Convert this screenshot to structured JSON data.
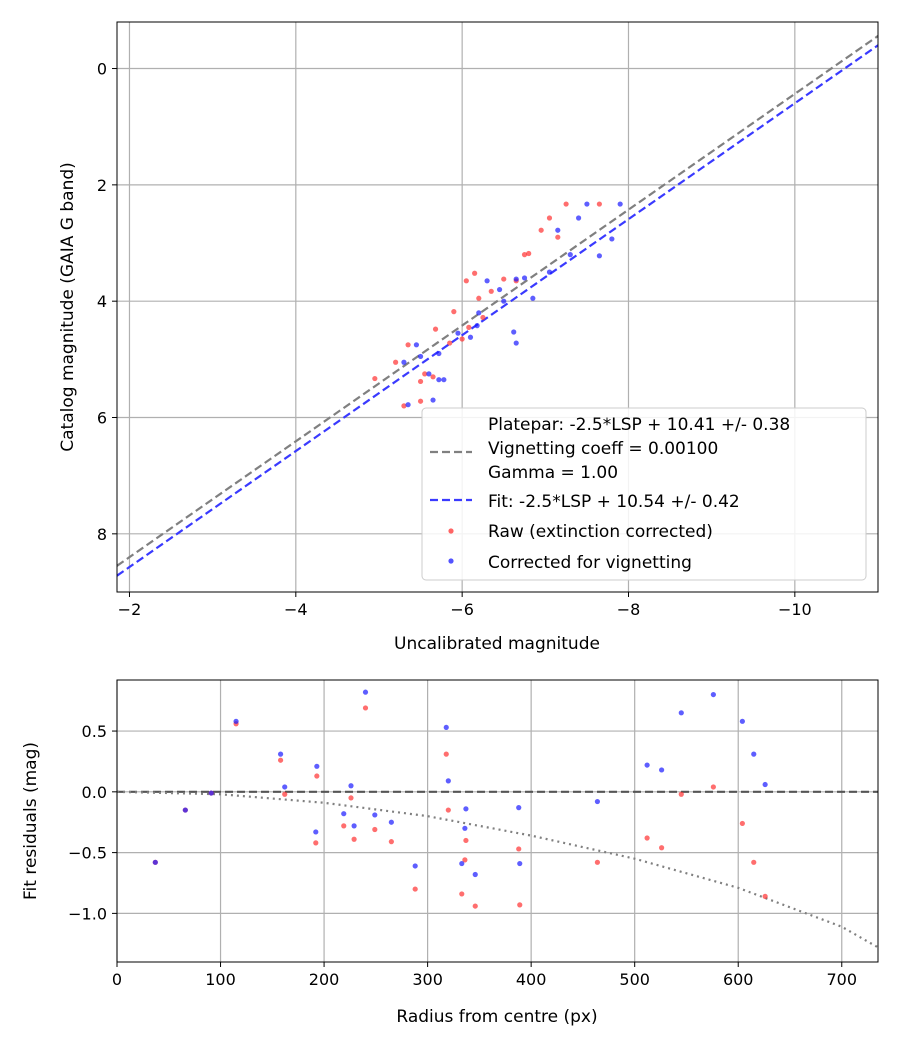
{
  "chart_data": [
    {
      "type": "scatter",
      "title": "",
      "xlabel": "Uncalibrated magnitude",
      "ylabel": "Catalog magnitude (GAIA G band)",
      "xlim": [
        -1.85,
        -11.0
      ],
      "ylim": [
        9.0,
        -0.8
      ],
      "grid": true,
      "xticks": [
        -2,
        -4,
        -6,
        -8,
        -10
      ],
      "xtick_labels": [
        "−2",
        "−4",
        "−6",
        "−8",
        "−10"
      ],
      "yticks": [
        0,
        2,
        4,
        6,
        8
      ],
      "ytick_labels": [
        "0",
        "2",
        "4",
        "6",
        "8"
      ],
      "legend_position": "lower-right",
      "legend": {
        "platepar_label": "Platepar: -2.5*LSP + 10.41 +/- 0.38",
        "vignetting_label": "Vignetting coeff = 0.00100",
        "gamma_label": "Gamma = 1.00",
        "fit_label": "Fit: -2.5*LSP + 10.54 +/- 0.42",
        "raw_label": "Raw (extinction corrected)",
        "corrected_label": "Corrected for vignetting"
      },
      "lines": [
        {
          "name": "Platepar",
          "color": "#808080",
          "style": "dashed",
          "x": [
            -1.85,
            -11.0
          ],
          "y": [
            8.55,
            -0.56
          ]
        },
        {
          "name": "Fit",
          "color": "#3a3aff",
          "style": "dashed",
          "x": [
            -1.85,
            -11.0
          ],
          "y": [
            8.72,
            -0.4
          ]
        }
      ],
      "series": [
        {
          "name": "Raw (extinction corrected)",
          "color": "#ff3030",
          "x": [
            -4.95,
            -5.3,
            -5.2,
            -5.35,
            -5.5,
            -5.5,
            -5.55,
            -5.65,
            -5.68,
            -5.85,
            -5.9,
            -6.0,
            -6.05,
            -6.08,
            -6.15,
            -6.2,
            -6.25,
            -6.35,
            -6.5,
            -6.65,
            -6.75,
            -6.8,
            -6.95,
            -7.05,
            -7.15,
            -7.25,
            -7.65
          ],
          "y": [
            5.33,
            5.8,
            5.05,
            4.75,
            5.72,
            5.38,
            5.25,
            5.3,
            4.48,
            4.72,
            4.18,
            4.65,
            3.65,
            4.45,
            3.52,
            3.95,
            4.28,
            3.83,
            3.62,
            3.65,
            3.2,
            3.18,
            2.78,
            2.57,
            2.9,
            2.33,
            2.33
          ]
        },
        {
          "name": "Corrected for vignetting",
          "color": "#1a1aff",
          "x": [
            -5.3,
            -5.35,
            -5.45,
            -5.5,
            -5.6,
            -5.65,
            -5.72,
            -5.78,
            -5.72,
            -5.95,
            -6.1,
            -6.18,
            -6.2,
            -6.3,
            -6.45,
            -6.5,
            -6.62,
            -6.65,
            -6.65,
            -6.75,
            -6.85,
            -7.05,
            -7.15,
            -7.3,
            -7.4,
            -7.5,
            -7.65,
            -7.8,
            -7.9
          ],
          "y": [
            5.05,
            5.78,
            4.75,
            4.95,
            5.25,
            5.7,
            4.9,
            5.35,
            5.35,
            4.55,
            4.62,
            4.42,
            4.2,
            3.65,
            3.8,
            4.0,
            4.53,
            4.72,
            3.62,
            3.6,
            3.95,
            3.5,
            2.78,
            3.2,
            2.57,
            2.33,
            3.22,
            2.93,
            2.33
          ]
        }
      ]
    },
    {
      "type": "scatter",
      "title": "",
      "xlabel": "Radius from centre (px)",
      "ylabel": "Fit residuals (mag)",
      "xlim": [
        0,
        735
      ],
      "ylim": [
        -1.4,
        0.92
      ],
      "grid": true,
      "xticks": [
        0,
        100,
        200,
        300,
        400,
        500,
        600,
        700
      ],
      "xtick_labels": [
        "0",
        "100",
        "200",
        "300",
        "400",
        "500",
        "600",
        "700"
      ],
      "yticks": [
        0.5,
        0.0,
        -0.5,
        -1.0
      ],
      "ytick_labels": [
        "0.5",
        "0.0",
        "−0.5",
        "−1.0"
      ],
      "reference_lines": [
        {
          "name": "zero",
          "color": "#555555",
          "style": "dashed",
          "x": [
            0,
            735
          ],
          "y": [
            0,
            0
          ]
        },
        {
          "name": "vignetting model",
          "color": "#808080",
          "style": "dotted",
          "x": [
            0,
            100,
            200,
            300,
            400,
            500,
            600,
            700,
            735
          ],
          "y": [
            0,
            -0.02,
            -0.09,
            -0.2,
            -0.36,
            -0.55,
            -0.79,
            -1.11,
            -1.28
          ]
        }
      ],
      "series": [
        {
          "name": "Raw (extinction corrected)",
          "color": "#ff3030",
          "x": [
            37,
            66,
            91,
            115,
            158,
            162,
            192,
            193,
            219,
            226,
            229,
            240,
            249,
            265,
            288,
            318,
            320,
            333,
            336,
            337,
            346,
            388,
            389,
            464,
            512,
            526,
            545,
            576,
            604,
            615,
            626
          ],
          "y": [
            -0.58,
            -0.15,
            -0.01,
            0.56,
            0.26,
            -0.02,
            -0.42,
            0.13,
            -0.28,
            -0.05,
            -0.39,
            0.69,
            -0.31,
            -0.41,
            -0.8,
            0.31,
            -0.15,
            -0.84,
            -0.56,
            -0.4,
            -0.94,
            -0.47,
            -0.93,
            -0.58,
            -0.38,
            -0.46,
            -0.02,
            0.04,
            -0.26,
            -0.58,
            -0.86
          ]
        },
        {
          "name": "Corrected for vignetting",
          "color": "#1a1aff",
          "x": [
            37,
            66,
            91,
            115,
            158,
            162,
            192,
            193,
            219,
            226,
            229,
            240,
            249,
            265,
            288,
            318,
            320,
            333,
            336,
            337,
            346,
            388,
            389,
            464,
            512,
            526,
            545,
            576,
            604,
            615,
            626
          ],
          "y": [
            -0.58,
            -0.15,
            -0.01,
            0.58,
            0.31,
            0.04,
            -0.33,
            0.21,
            -0.18,
            0.05,
            -0.28,
            0.82,
            -0.19,
            -0.25,
            -0.61,
            0.53,
            0.09,
            -0.59,
            -0.3,
            -0.14,
            -0.68,
            -0.13,
            -0.59,
            -0.08,
            0.22,
            0.18,
            0.65,
            0.8,
            0.58,
            0.31,
            0.06
          ]
        }
      ]
    }
  ]
}
